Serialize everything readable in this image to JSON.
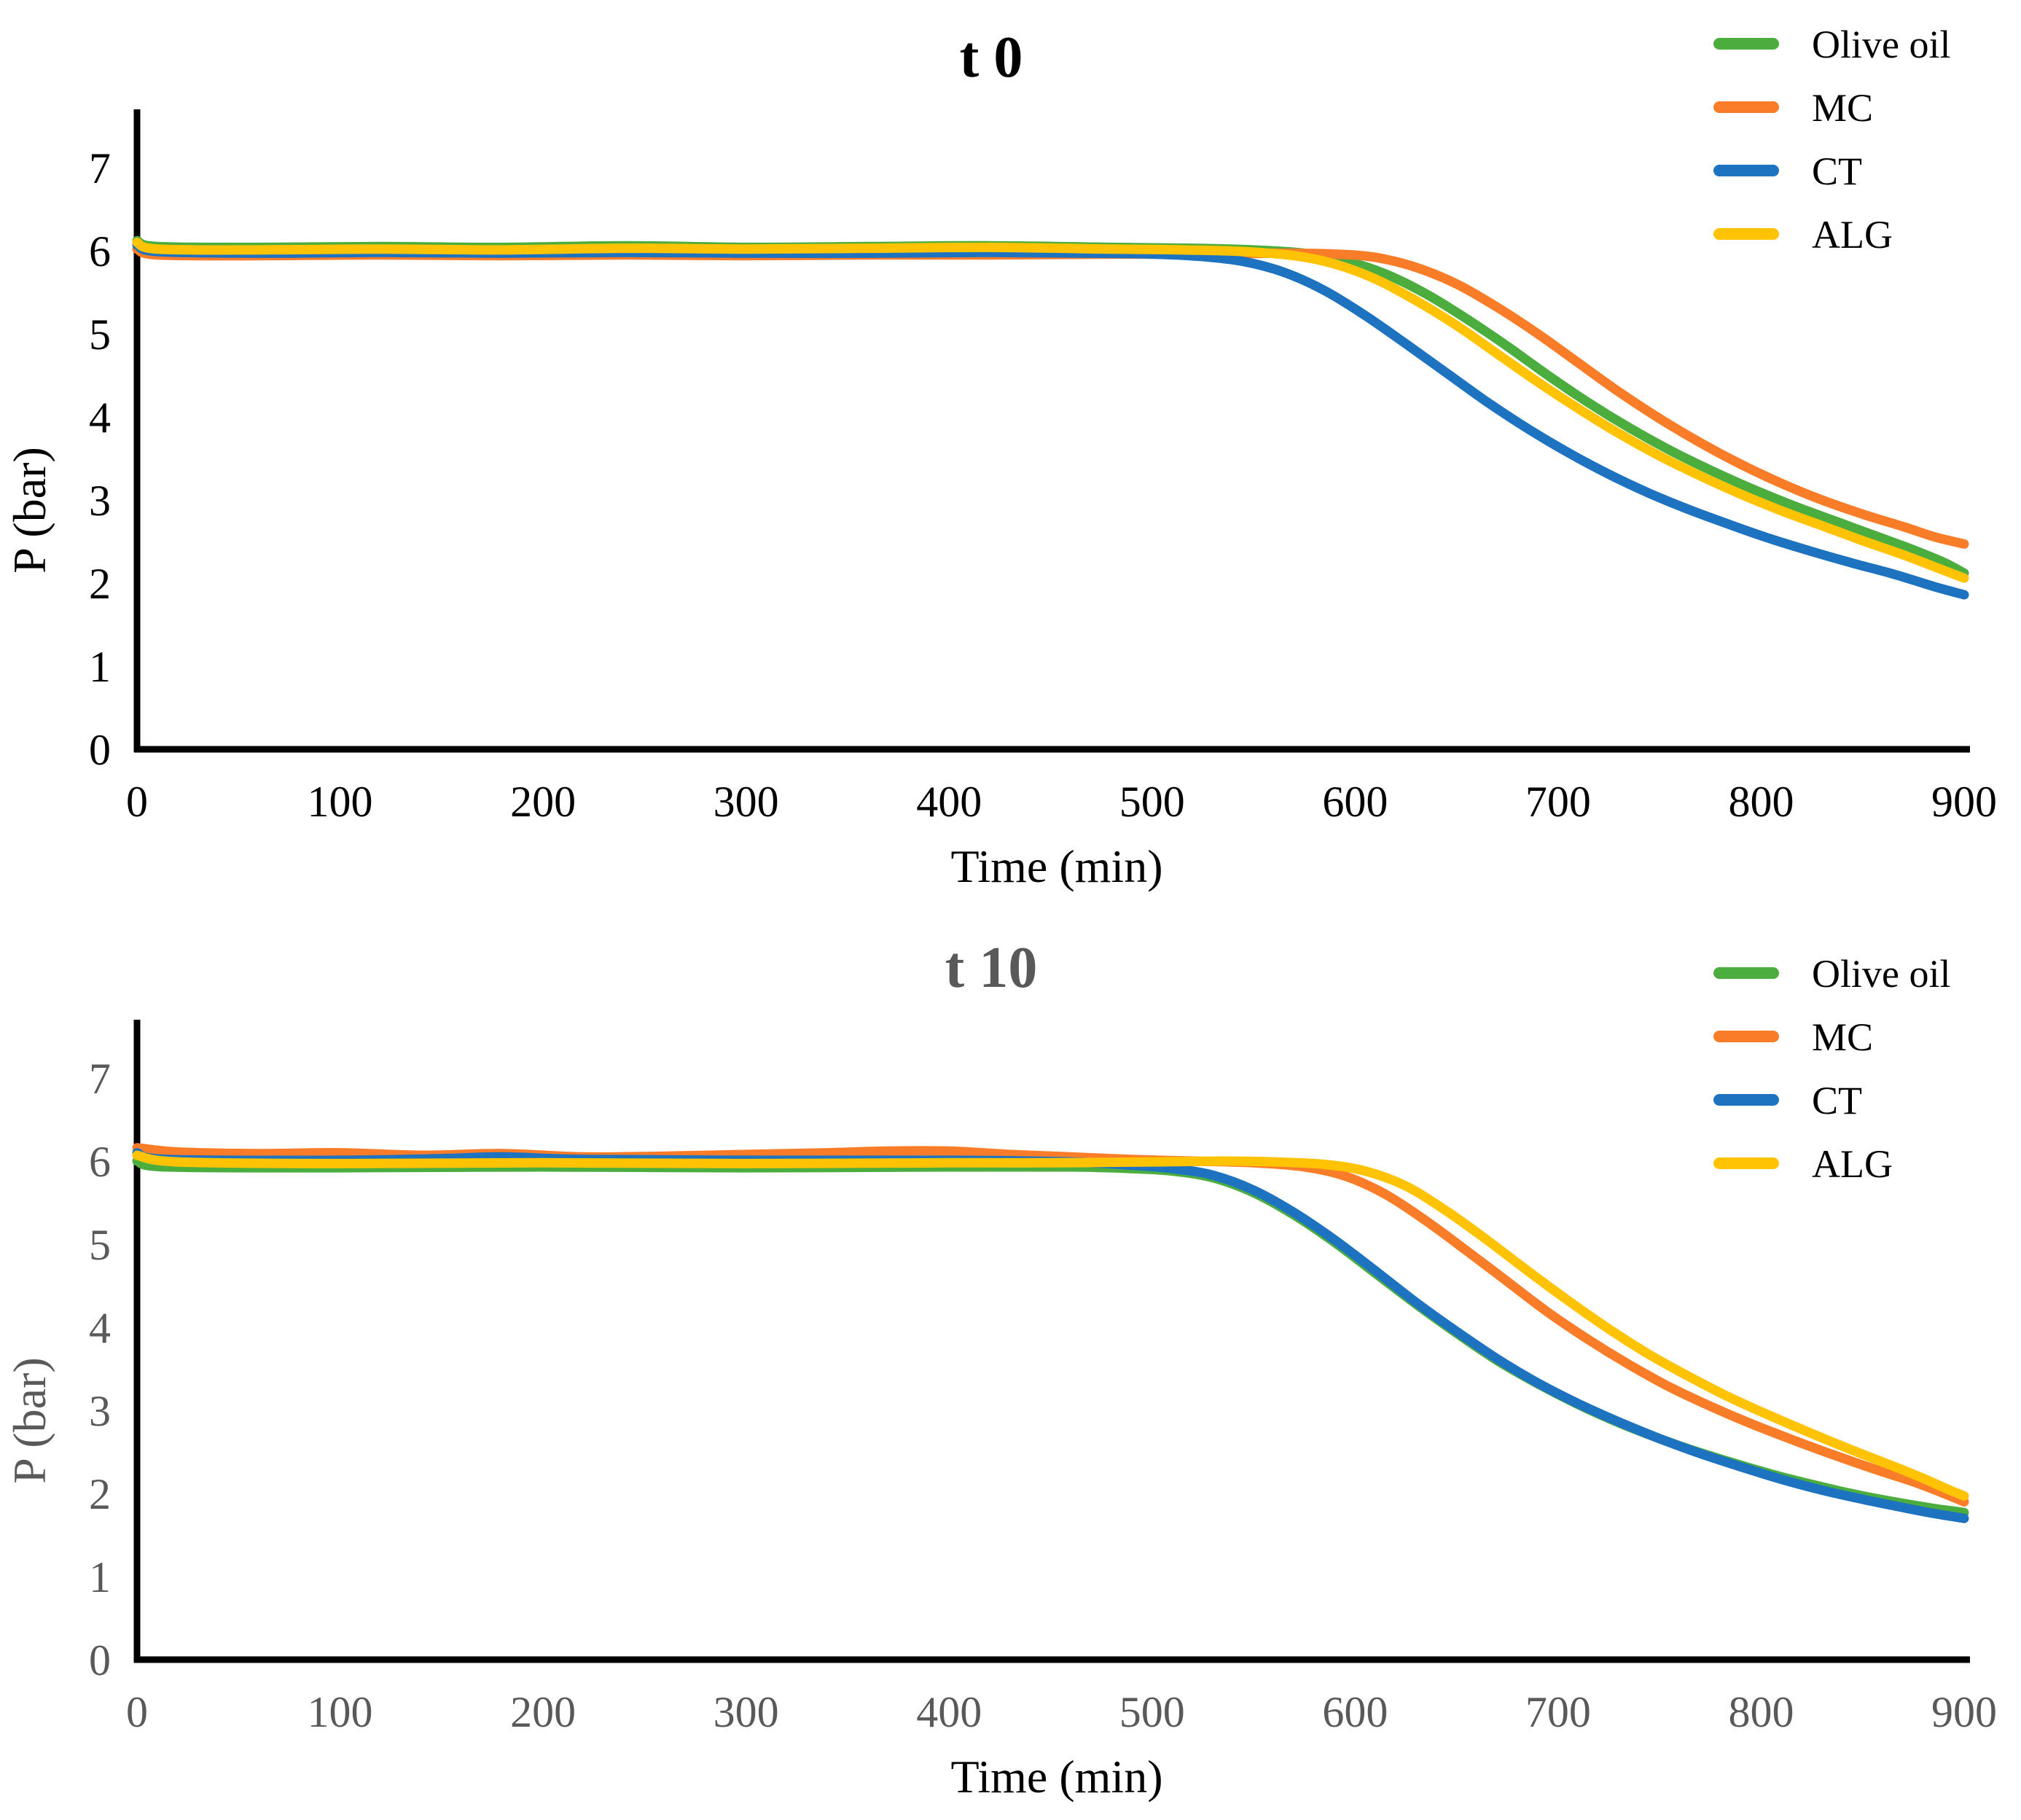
{
  "chart_data": [
    {
      "type": "line",
      "title": "t 0",
      "xlabel": "Time (min)",
      "ylabel": "P (bar)",
      "xlim": [
        0,
        900
      ],
      "ylim": [
        0,
        7
      ],
      "xticks": [
        0,
        100,
        200,
        300,
        400,
        500,
        600,
        700,
        800,
        900
      ],
      "yticks": [
        0,
        1,
        2,
        3,
        4,
        5,
        6,
        7
      ],
      "grid": false,
      "legend_position": "top-right",
      "title_color": "#000000",
      "tick_color": "#000000",
      "ylabel_color": "#000000",
      "xlabel_color": "#000000",
      "axis_color": "#000000",
      "legend_text_color": "#000000",
      "series": [
        {
          "name": "Olive oil",
          "color": "#4cad3f",
          "points": [
            [
              0,
              6.12
            ],
            [
              10,
              6.05
            ],
            [
              60,
              6.04
            ],
            [
              120,
              6.05
            ],
            [
              180,
              6.04
            ],
            [
              240,
              6.06
            ],
            [
              300,
              6.04
            ],
            [
              360,
              6.05
            ],
            [
              420,
              6.06
            ],
            [
              480,
              6.04
            ],
            [
              520,
              6.03
            ],
            [
              550,
              6.01
            ],
            [
              575,
              5.97
            ],
            [
              595,
              5.88
            ],
            [
              615,
              5.72
            ],
            [
              635,
              5.48
            ],
            [
              655,
              5.18
            ],
            [
              675,
              4.85
            ],
            [
              695,
              4.5
            ],
            [
              715,
              4.17
            ],
            [
              735,
              3.87
            ],
            [
              755,
              3.6
            ],
            [
              775,
              3.36
            ],
            [
              795,
              3.14
            ],
            [
              815,
              2.94
            ],
            [
              835,
              2.76
            ],
            [
              855,
              2.58
            ],
            [
              875,
              2.4
            ],
            [
              890,
              2.25
            ],
            [
              900,
              2.12
            ]
          ]
        },
        {
          "name": "MC",
          "color": "#f97d28",
          "points": [
            [
              0,
              6.02
            ],
            [
              10,
              5.95
            ],
            [
              60,
              5.94
            ],
            [
              120,
              5.95
            ],
            [
              180,
              5.94
            ],
            [
              240,
              5.95
            ],
            [
              300,
              5.94
            ],
            [
              360,
              5.95
            ],
            [
              420,
              5.95
            ],
            [
              480,
              5.96
            ],
            [
              520,
              5.96
            ],
            [
              560,
              5.97
            ],
            [
              590,
              5.96
            ],
            [
              610,
              5.92
            ],
            [
              630,
              5.8
            ],
            [
              650,
              5.6
            ],
            [
              670,
              5.32
            ],
            [
              690,
              5.0
            ],
            [
              710,
              4.65
            ],
            [
              730,
              4.3
            ],
            [
              750,
              3.98
            ],
            [
              770,
              3.69
            ],
            [
              790,
              3.43
            ],
            [
              810,
              3.2
            ],
            [
              830,
              3.0
            ],
            [
              850,
              2.83
            ],
            [
              870,
              2.68
            ],
            [
              885,
              2.56
            ],
            [
              900,
              2.47
            ]
          ]
        },
        {
          "name": "CT",
          "color": "#1e73c1",
          "points": [
            [
              0,
              6.07
            ],
            [
              10,
              5.99
            ],
            [
              60,
              5.97
            ],
            [
              120,
              5.98
            ],
            [
              180,
              5.97
            ],
            [
              240,
              5.98
            ],
            [
              300,
              5.97
            ],
            [
              360,
              5.97
            ],
            [
              420,
              5.98
            ],
            [
              470,
              5.97
            ],
            [
              500,
              5.96
            ],
            [
              525,
              5.93
            ],
            [
              545,
              5.87
            ],
            [
              565,
              5.74
            ],
            [
              585,
              5.52
            ],
            [
              605,
              5.22
            ],
            [
              625,
              4.88
            ],
            [
              645,
              4.53
            ],
            [
              665,
              4.18
            ],
            [
              685,
              3.86
            ],
            [
              705,
              3.57
            ],
            [
              725,
              3.31
            ],
            [
              745,
              3.08
            ],
            [
              765,
              2.88
            ],
            [
              785,
              2.7
            ],
            [
              805,
              2.53
            ],
            [
              825,
              2.38
            ],
            [
              845,
              2.24
            ],
            [
              865,
              2.11
            ],
            [
              885,
              1.96
            ],
            [
              900,
              1.86
            ]
          ]
        },
        {
          "name": "ALG",
          "color": "#ffc303",
          "points": [
            [
              0,
              6.1
            ],
            [
              10,
              6.02
            ],
            [
              60,
              6.01
            ],
            [
              120,
              6.02
            ],
            [
              180,
              6.01
            ],
            [
              240,
              6.03
            ],
            [
              300,
              6.02
            ],
            [
              360,
              6.03
            ],
            [
              420,
              6.04
            ],
            [
              480,
              6.02
            ],
            [
              515,
              6.01
            ],
            [
              545,
              5.99
            ],
            [
              570,
              5.94
            ],
            [
              590,
              5.84
            ],
            [
              610,
              5.66
            ],
            [
              630,
              5.4
            ],
            [
              650,
              5.1
            ],
            [
              670,
              4.76
            ],
            [
              690,
              4.42
            ],
            [
              710,
              4.1
            ],
            [
              730,
              3.8
            ],
            [
              750,
              3.53
            ],
            [
              770,
              3.29
            ],
            [
              790,
              3.07
            ],
            [
              810,
              2.87
            ],
            [
              830,
              2.69
            ],
            [
              850,
              2.51
            ],
            [
              870,
              2.34
            ],
            [
              885,
              2.2
            ],
            [
              900,
              2.06
            ]
          ]
        }
      ]
    },
    {
      "type": "line",
      "title": "t 10",
      "xlabel": "Time (min)",
      "ylabel": "P (bar)",
      "xlim": [
        0,
        900
      ],
      "ylim": [
        0,
        7
      ],
      "xticks": [
        0,
        100,
        200,
        300,
        400,
        500,
        600,
        700,
        800,
        900
      ],
      "yticks": [
        0,
        1,
        2,
        3,
        4,
        5,
        6,
        7
      ],
      "grid": false,
      "legend_position": "top-right",
      "title_color": "#595959",
      "tick_color": "#595959",
      "ylabel_color": "#595959",
      "xlabel_color": "#000000",
      "axis_color": "#000000",
      "legend_text_color": "#000000",
      "series": [
        {
          "name": "Olive oil",
          "color": "#4cad3f",
          "points": [
            [
              0,
              6.0
            ],
            [
              15,
              5.93
            ],
            [
              100,
              5.92
            ],
            [
              200,
              5.93
            ],
            [
              300,
              5.92
            ],
            [
              400,
              5.93
            ],
            [
              460,
              5.93
            ],
            [
              490,
              5.91
            ],
            [
              510,
              5.88
            ],
            [
              530,
              5.8
            ],
            [
              550,
              5.62
            ],
            [
              570,
              5.35
            ],
            [
              590,
              5.02
            ],
            [
              610,
              4.65
            ],
            [
              630,
              4.28
            ],
            [
              650,
              3.93
            ],
            [
              670,
              3.6
            ],
            [
              690,
              3.32
            ],
            [
              710,
              3.07
            ],
            [
              730,
              2.85
            ],
            [
              750,
              2.66
            ],
            [
              770,
              2.49
            ],
            [
              790,
              2.34
            ],
            [
              810,
              2.2
            ],
            [
              830,
              2.08
            ],
            [
              850,
              1.97
            ],
            [
              870,
              1.88
            ],
            [
              885,
              1.82
            ],
            [
              900,
              1.77
            ]
          ]
        },
        {
          "name": "MC",
          "color": "#f97d28",
          "points": [
            [
              0,
              6.16
            ],
            [
              20,
              6.11
            ],
            [
              60,
              6.09
            ],
            [
              100,
              6.1
            ],
            [
              140,
              6.07
            ],
            [
              180,
              6.09
            ],
            [
              220,
              6.05
            ],
            [
              260,
              6.06
            ],
            [
              300,
              6.08
            ],
            [
              340,
              6.1
            ],
            [
              370,
              6.12
            ],
            [
              400,
              6.12
            ],
            [
              430,
              6.08
            ],
            [
              460,
              6.05
            ],
            [
              490,
              6.02
            ],
            [
              520,
              6.0
            ],
            [
              550,
              5.98
            ],
            [
              575,
              5.93
            ],
            [
              595,
              5.82
            ],
            [
              615,
              5.6
            ],
            [
              635,
              5.28
            ],
            [
              655,
              4.92
            ],
            [
              675,
              4.55
            ],
            [
              695,
              4.18
            ],
            [
              715,
              3.85
            ],
            [
              735,
              3.55
            ],
            [
              755,
              3.28
            ],
            [
              775,
              3.05
            ],
            [
              795,
              2.84
            ],
            [
              815,
              2.65
            ],
            [
              835,
              2.47
            ],
            [
              855,
              2.3
            ],
            [
              875,
              2.14
            ],
            [
              890,
              2.0
            ],
            [
              900,
              1.9
            ]
          ]
        },
        {
          "name": "CT",
          "color": "#1e73c1",
          "points": [
            [
              0,
              6.1
            ],
            [
              15,
              6.02
            ],
            [
              100,
              6.01
            ],
            [
              150,
              6.03
            ],
            [
              180,
              6.05
            ],
            [
              220,
              6.02
            ],
            [
              300,
              6.01
            ],
            [
              400,
              6.01
            ],
            [
              460,
              5.99
            ],
            [
              490,
              5.95
            ],
            [
              510,
              5.91
            ],
            [
              530,
              5.83
            ],
            [
              550,
              5.65
            ],
            [
              570,
              5.38
            ],
            [
              590,
              5.05
            ],
            [
              610,
              4.68
            ],
            [
              630,
              4.3
            ],
            [
              650,
              3.95
            ],
            [
              670,
              3.62
            ],
            [
              690,
              3.33
            ],
            [
              710,
              3.08
            ],
            [
              730,
              2.86
            ],
            [
              750,
              2.66
            ],
            [
              770,
              2.48
            ],
            [
              790,
              2.32
            ],
            [
              810,
              2.17
            ],
            [
              830,
              2.04
            ],
            [
              850,
              1.93
            ],
            [
              870,
              1.83
            ],
            [
              885,
              1.76
            ],
            [
              900,
              1.7
            ]
          ]
        },
        {
          "name": "ALG",
          "color": "#ffc303",
          "points": [
            [
              0,
              6.07
            ],
            [
              20,
              5.99
            ],
            [
              100,
              5.97
            ],
            [
              200,
              5.98
            ],
            [
              300,
              5.97
            ],
            [
              400,
              5.98
            ],
            [
              450,
              5.98
            ],
            [
              500,
              5.99
            ],
            [
              535,
              6.0
            ],
            [
              560,
              5.99
            ],
            [
              585,
              5.96
            ],
            [
              605,
              5.88
            ],
            [
              625,
              5.7
            ],
            [
              645,
              5.4
            ],
            [
              665,
              5.05
            ],
            [
              685,
              4.68
            ],
            [
              705,
              4.32
            ],
            [
              725,
              3.98
            ],
            [
              745,
              3.67
            ],
            [
              765,
              3.4
            ],
            [
              785,
              3.15
            ],
            [
              805,
              2.93
            ],
            [
              825,
              2.72
            ],
            [
              845,
              2.52
            ],
            [
              865,
              2.33
            ],
            [
              880,
              2.18
            ],
            [
              892,
              2.05
            ],
            [
              900,
              1.97
            ]
          ]
        }
      ]
    }
  ]
}
